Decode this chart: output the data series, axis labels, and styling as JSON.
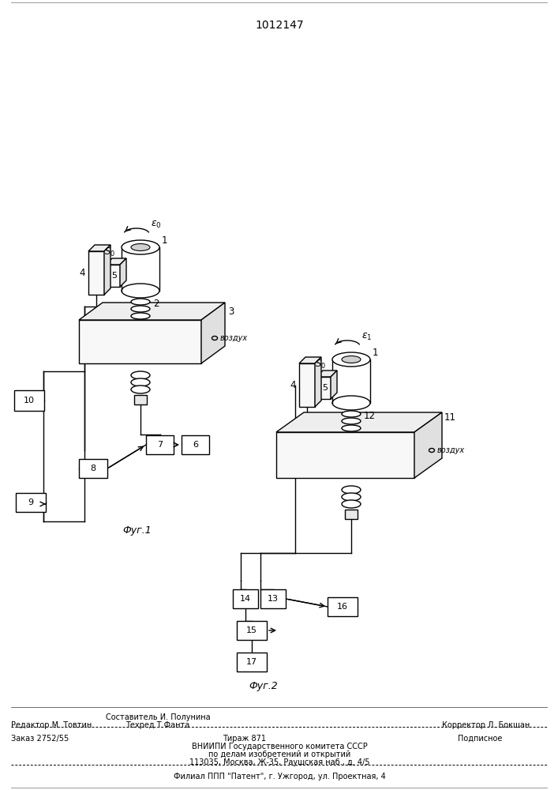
{
  "title": "1012147",
  "bg_color": "#ffffff",
  "fig1_label": "Фуг.1",
  "fig2_label": "Фуг.2",
  "footer_line1_left": "Редактор М. Товтин",
  "footer_line1_center": "Составитель И. Полунина",
  "footer_line1_right": "Корректор Л. Бокшан",
  "footer_line2_center": "Техред Т.Фанта",
  "footer_order": "Заказ 2752/55",
  "footer_tirazh": "Тираж 871",
  "footer_podp": "Подписное",
  "footer_vniip1": "ВНИИПИ Государственного комитета СССР",
  "footer_vniip2": "по делам изобретений и открытий",
  "footer_addr": "113035, Москва, Ж-35, Раушская наб., д. 4/5",
  "footer_filial": "Филиал ППП \"Патент\", г. Ужгород, ул. Проектная, 4",
  "vozduh": "воздух"
}
